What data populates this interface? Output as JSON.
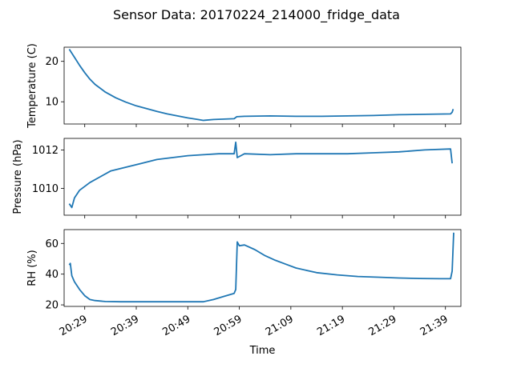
{
  "figure": {
    "title": "Sensor Data: 20170224_214000_fridge_data",
    "line_color": "#1f77b4"
  },
  "chart_data": [
    {
      "type": "line",
      "ylabel": "Temperature (C)",
      "xlabel": "",
      "xlim": [
        "20:25",
        "21:42"
      ],
      "ylim": [
        4.5,
        23.5
      ],
      "yticks": [
        10,
        20
      ],
      "grid": false,
      "series": [
        {
          "x": [
            "20:26",
            "20:27",
            "20:28",
            "20:29",
            "20:30",
            "20:31",
            "20:33",
            "20:35",
            "20:37",
            "20:39",
            "20:41",
            "20:43",
            "20:45",
            "20:47",
            "20:49",
            "20:51",
            "20:52",
            "20:54",
            "20:56",
            "20:58",
            "20:58.5",
            "21:00",
            "21:05",
            "21:10",
            "21:15",
            "21:20",
            "21:25",
            "21:30",
            "21:35",
            "21:40",
            "21:40.3",
            "21:40.5"
          ],
          "y": [
            23,
            21,
            19,
            17.2,
            15.6,
            14.3,
            12.4,
            11,
            9.9,
            9,
            8.3,
            7.6,
            7.0,
            6.5,
            6.0,
            5.6,
            5.4,
            5.6,
            5.7,
            5.8,
            6.3,
            6.4,
            6.5,
            6.4,
            6.4,
            6.5,
            6.6,
            6.8,
            6.9,
            7.0,
            7.4,
            8.2
          ]
        }
      ]
    },
    {
      "type": "line",
      "ylabel": "Pressure (hPa)",
      "xlabel": "",
      "xlim": [
        "20:25",
        "21:42"
      ],
      "ylim": [
        1008.6,
        1012.6
      ],
      "yticks": [
        1010,
        1012
      ],
      "grid": false,
      "series": [
        {
          "x": [
            "20:26",
            "20:26.5",
            "20:27",
            "20:28",
            "20:30",
            "20:32",
            "20:34",
            "20:37",
            "20:40",
            "20:43",
            "20:46",
            "20:49",
            "20:52",
            "20:55",
            "20:58",
            "20:58.3",
            "20:58.6",
            "21:00",
            "21:05",
            "21:10",
            "21:15",
            "21:20",
            "21:25",
            "21:30",
            "21:35",
            "21:40",
            "21:40.3"
          ],
          "y": [
            1009.2,
            1009.0,
            1009.5,
            1009.9,
            1010.3,
            1010.6,
            1010.9,
            1011.1,
            1011.3,
            1011.5,
            1011.6,
            1011.7,
            1011.75,
            1011.8,
            1011.8,
            1012.4,
            1011.6,
            1011.8,
            1011.75,
            1011.8,
            1011.8,
            1011.8,
            1011.85,
            1011.9,
            1012.0,
            1012.05,
            1011.3
          ]
        }
      ]
    },
    {
      "type": "line",
      "ylabel": "RH (%)",
      "xlabel": "Time",
      "xlim": [
        "20:25",
        "21:42"
      ],
      "ylim": [
        19,
        69
      ],
      "yticks": [
        20,
        40,
        60
      ],
      "xticks": [
        "20:29",
        "20:39",
        "20:49",
        "20:59",
        "21:09",
        "21:19",
        "21:29",
        "21:39"
      ],
      "grid": false,
      "series": [
        {
          "x": [
            "20:26",
            "20:26.2",
            "20:26.5",
            "20:27",
            "20:28",
            "20:29",
            "20:30",
            "20:31",
            "20:33",
            "20:36",
            "20:40",
            "20:45",
            "20:50",
            "20:52",
            "20:54",
            "20:56",
            "20:58",
            "20:58.3",
            "20:58.6",
            "20:59",
            "21:00",
            "21:02",
            "21:04",
            "21:06",
            "21:08",
            "21:10",
            "21:14",
            "21:18",
            "21:22",
            "21:26",
            "21:30",
            "21:34",
            "21:38",
            "21:40",
            "21:40.3",
            "21:40.6"
          ],
          "y": [
            46,
            47,
            39,
            35,
            30,
            26,
            23.5,
            22.8,
            22.2,
            22,
            22,
            22,
            22,
            22,
            23.5,
            25.5,
            27.5,
            30,
            61,
            58.5,
            59,
            56,
            52,
            49,
            46.5,
            44,
            41,
            39.5,
            38.5,
            38,
            37.5,
            37.2,
            37,
            37,
            42,
            67
          ]
        }
      ]
    }
  ]
}
